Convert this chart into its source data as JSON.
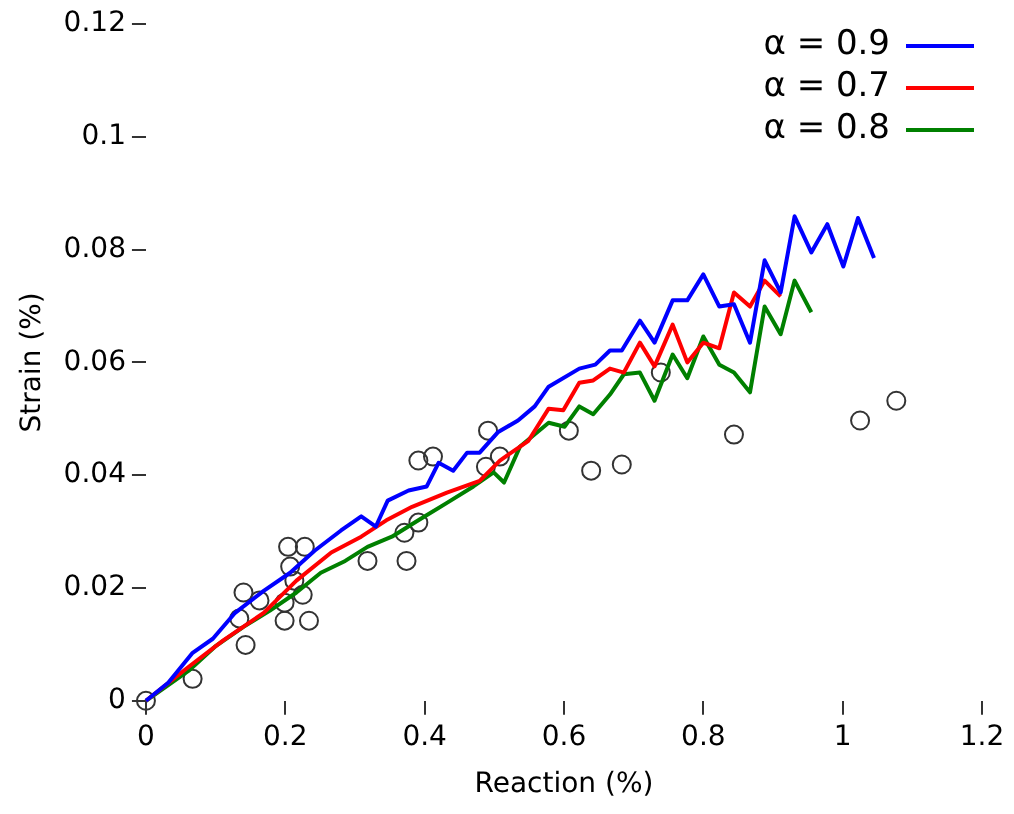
{
  "chart_data": {
    "type": "line",
    "xlabel": "Reaction (%)",
    "ylabel": "Strain (%)",
    "xlim": [
      0,
      1.2
    ],
    "ylim": [
      0,
      0.12
    ],
    "xticks": [
      0,
      0.2,
      0.4,
      0.6,
      0.8,
      1,
      1.2
    ],
    "yticks": [
      0,
      0.02,
      0.04,
      0.06,
      0.08,
      0.1,
      0.12
    ],
    "legend": "top right",
    "series": [
      {
        "name": "α = 0.9",
        "color": "#0000ff",
        "marker": "none",
        "x": [
          0,
          0.032,
          0.067,
          0.096,
          0.128,
          0.169,
          0.207,
          0.242,
          0.28,
          0.309,
          0.33,
          0.347,
          0.377,
          0.403,
          0.42,
          0.441,
          0.461,
          0.479,
          0.505,
          0.534,
          0.558,
          0.578,
          0.622,
          0.645,
          0.666,
          0.683,
          0.709,
          0.73,
          0.756,
          0.777,
          0.8,
          0.823,
          0.844,
          0.867,
          0.888,
          0.911,
          0.931,
          0.955,
          0.978,
          1.001,
          1.022,
          1.045
        ],
        "values": [
          0,
          0.0032,
          0.0085,
          0.011,
          0.0156,
          0.0195,
          0.0227,
          0.0266,
          0.0302,
          0.0327,
          0.0309,
          0.0355,
          0.0373,
          0.038,
          0.0422,
          0.0408,
          0.044,
          0.044,
          0.0476,
          0.0497,
          0.0522,
          0.0557,
          0.0589,
          0.0596,
          0.0621,
          0.0621,
          0.0674,
          0.0635,
          0.071,
          0.071,
          0.0756,
          0.0699,
          0.0703,
          0.0635,
          0.0781,
          0.0724,
          0.0859,
          0.0795,
          0.0845,
          0.077,
          0.0856,
          0.0785
        ]
      },
      {
        "name": "α = 0.7",
        "color": "#ff0000",
        "marker": "none",
        "x": [
          0,
          0.061,
          0.111,
          0.169,
          0.216,
          0.266,
          0.309,
          0.345,
          0.382,
          0.432,
          0.479,
          0.508,
          0.549,
          0.578,
          0.599,
          0.622,
          0.642,
          0.666,
          0.686,
          0.709,
          0.73,
          0.756,
          0.777,
          0.8,
          0.823,
          0.844,
          0.867,
          0.888,
          0.911
        ],
        "values": [
          0,
          0.006,
          0.0107,
          0.0156,
          0.0213,
          0.0263,
          0.0291,
          0.032,
          0.0344,
          0.0369,
          0.039,
          0.0426,
          0.0461,
          0.0518,
          0.0515,
          0.0564,
          0.0568,
          0.0589,
          0.0582,
          0.0635,
          0.0593,
          0.0667,
          0.06,
          0.0635,
          0.0625,
          0.0724,
          0.0699,
          0.0745,
          0.0717
        ]
      },
      {
        "name": "α = 0.8",
        "color": "#008000",
        "marker": "none",
        "x": [
          0,
          0.061,
          0.099,
          0.14,
          0.178,
          0.216,
          0.251,
          0.286,
          0.318,
          0.353,
          0.391,
          0.432,
          0.47,
          0.499,
          0.514,
          0.537,
          0.578,
          0.601,
          0.622,
          0.642,
          0.666,
          0.686,
          0.709,
          0.73,
          0.756,
          0.777,
          0.8,
          0.823,
          0.844,
          0.867,
          0.888,
          0.911,
          0.931,
          0.955
        ],
        "values": [
          0,
          0.0053,
          0.0096,
          0.0131,
          0.016,
          0.0192,
          0.0227,
          0.0248,
          0.0273,
          0.0291,
          0.032,
          0.0351,
          0.038,
          0.0405,
          0.0387,
          0.0451,
          0.0493,
          0.0486,
          0.0522,
          0.0508,
          0.0543,
          0.0579,
          0.0582,
          0.0532,
          0.0614,
          0.0572,
          0.0646,
          0.0596,
          0.0582,
          0.0547,
          0.0699,
          0.065,
          0.0745,
          0.0689
        ]
      },
      {
        "color": "#333333",
        "type": "scatter",
        "marker": "circle",
        "x": [
          0,
          0.067,
          0.14,
          0.134,
          0.143,
          0.163,
          0.199,
          0.199,
          0.204,
          0.228,
          0.207,
          0.213,
          0.225,
          0.234,
          0.318,
          0.371,
          0.391,
          0.374,
          0.391,
          0.412,
          0.491,
          0.488,
          0.508,
          0.607,
          0.639,
          0.683,
          0.739,
          0.844,
          1.025,
          1.077
        ],
        "values": [
          0,
          0.0039,
          0.0192,
          0.0146,
          0.0099,
          0.0178,
          0.0174,
          0.0142,
          0.0273,
          0.0273,
          0.0238,
          0.0213,
          0.0188,
          0.0142,
          0.0248,
          0.0298,
          0.0316,
          0.0248,
          0.0426,
          0.0433,
          0.0479,
          0.0415,
          0.0433,
          0.0479,
          0.0408,
          0.0419,
          0.0582,
          0.0472,
          0.0497,
          0.0532
        ]
      }
    ]
  }
}
